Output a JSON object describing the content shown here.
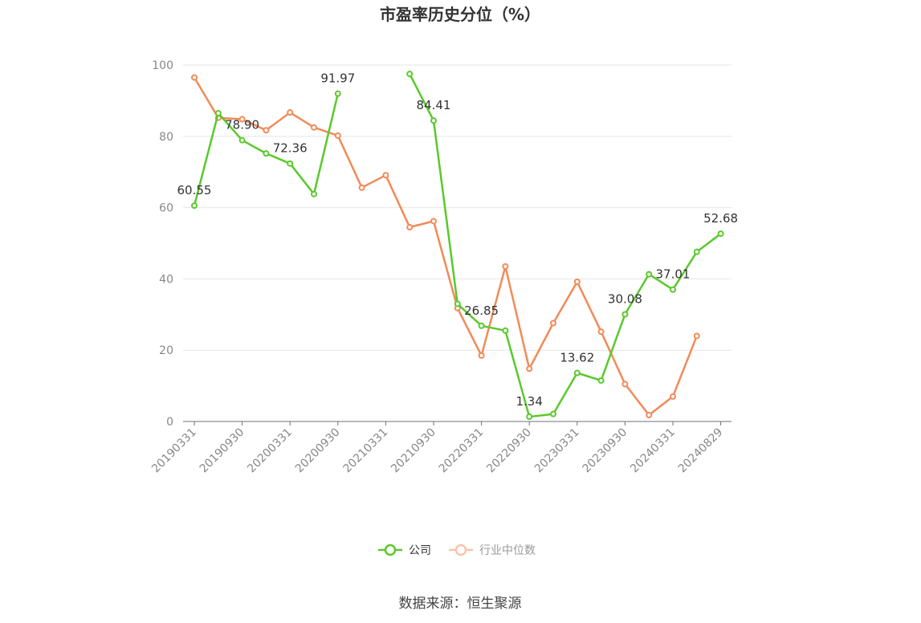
{
  "chart_data": {
    "type": "line",
    "title": "市盈率历史分位（%）",
    "xlabel": "",
    "ylabel": "",
    "ylim": [
      0,
      100
    ],
    "yticks": [
      0,
      20,
      40,
      60,
      80,
      100
    ],
    "x": [
      "20190331",
      "20190630",
      "20190930",
      "20191231",
      "20200331",
      "20200630",
      "20200930",
      "20201231",
      "20210331",
      "20210630",
      "20210930",
      "20211231",
      "20220331",
      "20220630",
      "20220930",
      "20221231",
      "20230331",
      "20230630",
      "20230930",
      "20231231",
      "20240331",
      "20240630",
      "20240829"
    ],
    "x_tick_labels": [
      "20190331",
      "20190930",
      "20200331",
      "20200930",
      "20210331",
      "20210930",
      "20220331",
      "20220930",
      "20230331",
      "20230930",
      "20240331",
      "20240829"
    ],
    "grid": true,
    "legend_position": "bottom",
    "series": [
      {
        "name": "公司",
        "color": "#5ac92b",
        "values": [
          60.55,
          86.5,
          78.9,
          75.2,
          72.36,
          63.8,
          91.97,
          null,
          null,
          97.5,
          84.41,
          33.0,
          26.85,
          25.5,
          1.34,
          2.1,
          13.62,
          11.5,
          30.08,
          41.3,
          37.01,
          47.6,
          52.68
        ],
        "labels": [
          {
            "index": 0,
            "text": "60.55"
          },
          {
            "index": 2,
            "text": "78.90"
          },
          {
            "index": 4,
            "text": "72.36"
          },
          {
            "index": 6,
            "text": "91.97"
          },
          {
            "index": 10,
            "text": "84.41"
          },
          {
            "index": 12,
            "text": "26.85"
          },
          {
            "index": 14,
            "text": "1.34"
          },
          {
            "index": 16,
            "text": "13.62"
          },
          {
            "index": 18,
            "text": "30.08"
          },
          {
            "index": 20,
            "text": "37.01"
          },
          {
            "index": 22,
            "text": "52.68"
          }
        ]
      },
      {
        "name": "行业中位数",
        "color": "#f28a58",
        "values": [
          96.5,
          85.2,
          84.8,
          81.7,
          86.7,
          82.5,
          80.2,
          65.6,
          69.1,
          54.5,
          56.2,
          31.8,
          18.5,
          43.5,
          14.8,
          27.6,
          39.2,
          25.2,
          10.5,
          1.8,
          7.0,
          24.0,
          null
        ]
      }
    ]
  },
  "legend": {
    "items": [
      {
        "label": "公司",
        "color": "#5ac92b"
      },
      {
        "label": "行业中位数",
        "color": "#f28a58",
        "faded": true
      }
    ]
  },
  "source": "数据来源：恒生聚源"
}
